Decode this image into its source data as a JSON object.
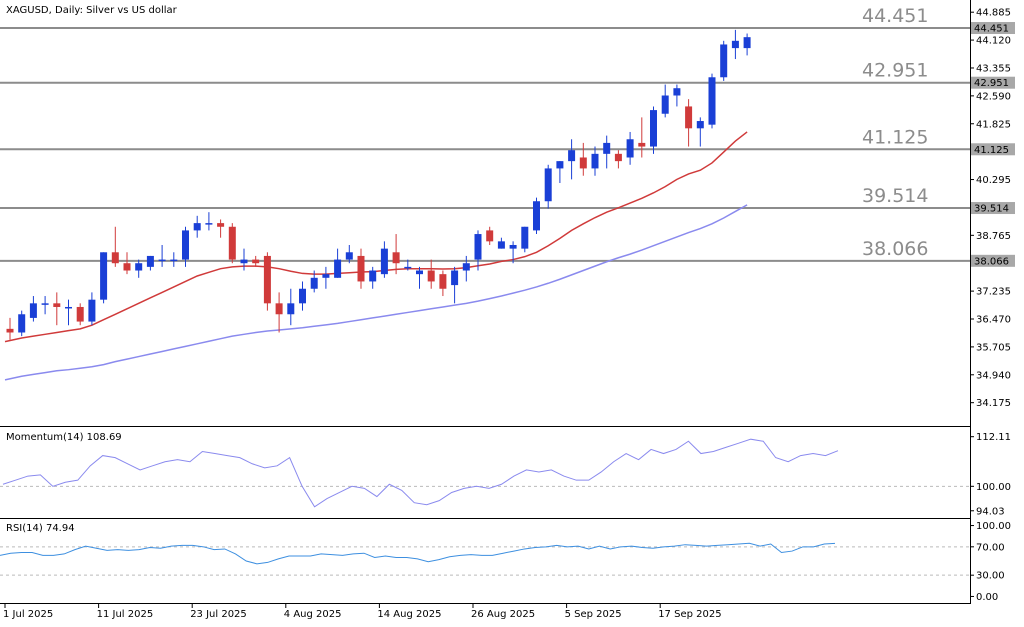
{
  "chart_data": [
    {
      "type": "candlestick",
      "title": "XAGUSD, Daily:  Silver vs US dollar",
      "ylim": [
        33.7,
        45.0
      ],
      "y_ticks": [
        "44.885",
        "44.120",
        "43.355",
        "42.590",
        "41.825",
        "41.060",
        "40.295",
        "39.530",
        "38.765",
        "38.000",
        "37.235",
        "36.470",
        "35.705",
        "34.940",
        "34.175"
      ],
      "x_tick_labels": [
        {
          "label": "1 Jul 2025",
          "index": 0
        },
        {
          "label": "11 Jul 2025",
          "index": 8
        },
        {
          "label": "23 Jul 2025",
          "index": 16
        },
        {
          "label": "4 Aug 2025",
          "index": 24
        },
        {
          "label": "14 Aug 2025",
          "index": 32
        },
        {
          "label": "26 Aug 2025",
          "index": 40
        },
        {
          "label": "5 Sep 2025",
          "index": 48
        },
        {
          "label": "17 Sep 2025",
          "index": 56
        }
      ],
      "levels": [
        {
          "value": 44.451,
          "label": "44.451",
          "tag": "44.451"
        },
        {
          "value": 42.951,
          "label": "42.951",
          "tag": "42.951"
        },
        {
          "value": 41.125,
          "label": "41.125",
          "tag": "41.125"
        },
        {
          "value": 39.514,
          "label": "39.514",
          "tag": "39.514"
        },
        {
          "value": 38.066,
          "label": "38.066",
          "tag": "38.066"
        }
      ],
      "colors": {
        "up": "#1a3fd6",
        "down": "#d03a3a",
        "ma_fast": "#d03a3a",
        "ma_slow": "#8a8aee",
        "level": "#8c8c8c"
      },
      "candles": [
        {
          "o": 36.2,
          "h": 36.5,
          "l": 35.9,
          "c": 36.1
        },
        {
          "o": 36.1,
          "h": 36.7,
          "l": 36.0,
          "c": 36.6
        },
        {
          "o": 36.5,
          "h": 37.1,
          "l": 36.4,
          "c": 36.9
        },
        {
          "o": 36.9,
          "h": 37.1,
          "l": 36.6,
          "c": 36.9
        },
        {
          "o": 36.9,
          "h": 37.2,
          "l": 36.3,
          "c": 36.8
        },
        {
          "o": 36.8,
          "h": 37.0,
          "l": 36.3,
          "c": 36.8
        },
        {
          "o": 36.8,
          "h": 36.9,
          "l": 36.3,
          "c": 36.4
        },
        {
          "o": 36.4,
          "h": 37.2,
          "l": 36.3,
          "c": 37.0
        },
        {
          "o": 37.0,
          "h": 38.3,
          "l": 36.9,
          "c": 38.3
        },
        {
          "o": 38.3,
          "h": 39.0,
          "l": 37.9,
          "c": 38.0
        },
        {
          "o": 38.0,
          "h": 38.3,
          "l": 37.7,
          "c": 37.8
        },
        {
          "o": 37.8,
          "h": 38.1,
          "l": 37.6,
          "c": 38.0
        },
        {
          "o": 37.9,
          "h": 38.2,
          "l": 37.8,
          "c": 38.2
        },
        {
          "o": 38.1,
          "h": 38.5,
          "l": 37.9,
          "c": 38.1
        },
        {
          "o": 38.1,
          "h": 38.3,
          "l": 37.9,
          "c": 38.1
        },
        {
          "o": 38.1,
          "h": 39.0,
          "l": 37.9,
          "c": 38.9
        },
        {
          "o": 38.9,
          "h": 39.3,
          "l": 38.7,
          "c": 39.1
        },
        {
          "o": 39.1,
          "h": 39.4,
          "l": 38.9,
          "c": 39.1
        },
        {
          "o": 39.1,
          "h": 39.2,
          "l": 38.7,
          "c": 39.0
        },
        {
          "o": 39.0,
          "h": 39.1,
          "l": 38.0,
          "c": 38.1
        },
        {
          "o": 38.0,
          "h": 38.4,
          "l": 37.8,
          "c": 38.1
        },
        {
          "o": 38.1,
          "h": 38.2,
          "l": 37.9,
          "c": 38.0
        },
        {
          "o": 38.2,
          "h": 38.3,
          "l": 36.7,
          "c": 36.9
        },
        {
          "o": 36.9,
          "h": 37.2,
          "l": 36.1,
          "c": 36.6
        },
        {
          "o": 36.6,
          "h": 37.3,
          "l": 36.3,
          "c": 36.9
        },
        {
          "o": 36.9,
          "h": 37.5,
          "l": 36.7,
          "c": 37.3
        },
        {
          "o": 37.3,
          "h": 37.8,
          "l": 37.2,
          "c": 37.6
        },
        {
          "o": 37.6,
          "h": 37.9,
          "l": 37.3,
          "c": 37.7
        },
        {
          "o": 37.6,
          "h": 38.4,
          "l": 37.6,
          "c": 38.1
        },
        {
          "o": 38.1,
          "h": 38.5,
          "l": 38.0,
          "c": 38.3
        },
        {
          "o": 38.2,
          "h": 38.4,
          "l": 37.3,
          "c": 37.5
        },
        {
          "o": 37.5,
          "h": 37.9,
          "l": 37.3,
          "c": 37.8
        },
        {
          "o": 37.7,
          "h": 38.6,
          "l": 37.6,
          "c": 38.4
        },
        {
          "o": 38.3,
          "h": 38.8,
          "l": 37.7,
          "c": 38.0
        },
        {
          "o": 37.9,
          "h": 38.1,
          "l": 37.8,
          "c": 37.9
        },
        {
          "o": 37.7,
          "h": 37.9,
          "l": 37.3,
          "c": 37.8
        },
        {
          "o": 37.8,
          "h": 38.1,
          "l": 37.3,
          "c": 37.5
        },
        {
          "o": 37.7,
          "h": 37.8,
          "l": 37.1,
          "c": 37.3
        },
        {
          "o": 37.4,
          "h": 37.9,
          "l": 36.9,
          "c": 37.8
        },
        {
          "o": 37.8,
          "h": 38.2,
          "l": 37.5,
          "c": 38.0
        },
        {
          "o": 38.1,
          "h": 38.9,
          "l": 37.8,
          "c": 38.8
        },
        {
          "o": 38.9,
          "h": 39.0,
          "l": 38.5,
          "c": 38.6
        },
        {
          "o": 38.4,
          "h": 38.7,
          "l": 38.4,
          "c": 38.6
        },
        {
          "o": 38.4,
          "h": 38.6,
          "l": 38.0,
          "c": 38.5
        },
        {
          "o": 38.4,
          "h": 39.0,
          "l": 38.3,
          "c": 39.0
        },
        {
          "o": 38.9,
          "h": 39.8,
          "l": 38.8,
          "c": 39.7
        },
        {
          "o": 39.7,
          "h": 40.7,
          "l": 39.5,
          "c": 40.6
        },
        {
          "o": 40.6,
          "h": 40.8,
          "l": 40.2,
          "c": 40.8
        },
        {
          "o": 40.8,
          "h": 41.4,
          "l": 40.3,
          "c": 41.1
        },
        {
          "o": 40.9,
          "h": 41.3,
          "l": 40.4,
          "c": 40.6
        },
        {
          "o": 40.6,
          "h": 41.2,
          "l": 40.4,
          "c": 41.0
        },
        {
          "o": 41.0,
          "h": 41.5,
          "l": 40.6,
          "c": 41.3
        },
        {
          "o": 41.0,
          "h": 41.1,
          "l": 40.6,
          "c": 40.8
        },
        {
          "o": 40.9,
          "h": 41.6,
          "l": 40.7,
          "c": 41.4
        },
        {
          "o": 41.3,
          "h": 42.0,
          "l": 40.9,
          "c": 41.2
        },
        {
          "o": 41.2,
          "h": 42.3,
          "l": 41.0,
          "c": 42.2
        },
        {
          "o": 42.1,
          "h": 42.9,
          "l": 42.0,
          "c": 42.6
        },
        {
          "o": 42.6,
          "h": 42.9,
          "l": 42.3,
          "c": 42.8
        },
        {
          "o": 42.3,
          "h": 42.5,
          "l": 41.2,
          "c": 41.7
        },
        {
          "o": 41.7,
          "h": 42.0,
          "l": 41.2,
          "c": 41.9
        },
        {
          "o": 41.8,
          "h": 43.2,
          "l": 41.7,
          "c": 43.1
        },
        {
          "o": 43.1,
          "h": 44.1,
          "l": 43.0,
          "c": 44.0
        },
        {
          "o": 43.9,
          "h": 44.4,
          "l": 43.6,
          "c": 44.1
        },
        {
          "o": 43.9,
          "h": 44.3,
          "l": 43.7,
          "c": 44.2
        }
      ],
      "ma_fast": [
        35.9,
        35.95,
        36.0,
        36.05,
        36.1,
        36.15,
        36.2,
        36.3,
        36.45,
        36.6,
        36.75,
        36.9,
        37.05,
        37.2,
        37.35,
        37.5,
        37.65,
        37.75,
        37.85,
        37.9,
        37.92,
        37.92,
        37.9,
        37.85,
        37.78,
        37.72,
        37.7,
        37.7,
        37.72,
        37.74,
        37.76,
        37.77,
        37.8,
        37.83,
        37.85,
        37.85,
        37.85,
        37.84,
        37.85,
        37.88,
        37.93,
        37.98,
        38.05,
        38.1,
        38.18,
        38.3,
        38.48,
        38.68,
        38.9,
        39.08,
        39.25,
        39.4,
        39.52,
        39.65,
        39.78,
        39.93,
        40.1,
        40.3,
        40.45,
        40.55,
        40.75,
        41.05,
        41.35,
        41.6
      ],
      "ma_slow": [
        34.85,
        34.9,
        34.95,
        35.0,
        35.05,
        35.08,
        35.12,
        35.16,
        35.22,
        35.3,
        35.37,
        35.44,
        35.51,
        35.58,
        35.65,
        35.72,
        35.79,
        35.86,
        35.93,
        36.0,
        36.05,
        36.1,
        36.14,
        36.17,
        36.2,
        36.23,
        36.27,
        36.31,
        36.35,
        36.4,
        36.45,
        36.5,
        36.55,
        36.6,
        36.65,
        36.7,
        36.75,
        36.8,
        36.85,
        36.9,
        36.96,
        37.03,
        37.1,
        37.18,
        37.26,
        37.35,
        37.45,
        37.56,
        37.68,
        37.8,
        37.92,
        38.04,
        38.15,
        38.25,
        38.36,
        38.48,
        38.6,
        38.72,
        38.84,
        38.95,
        39.08,
        39.24,
        39.42,
        39.6
      ]
    },
    {
      "type": "line",
      "title": "Momentum(14) 108.69",
      "ylim": [
        93.0,
        113.5
      ],
      "y_ticks": [
        "112.11",
        "100.00",
        "94.03"
      ],
      "reference": 100.0,
      "color": "#8a8aee",
      "values": [
        100.5,
        101.5,
        102.5,
        102.8,
        100.0,
        101.0,
        101.5,
        105.0,
        107.5,
        107.0,
        105.5,
        104.0,
        105.0,
        106.0,
        106.5,
        106.0,
        108.5,
        108.0,
        107.5,
        107.0,
        105.5,
        104.5,
        105.0,
        107.0,
        100.0,
        95.0,
        97.0,
        98.5,
        100.0,
        99.5,
        97.5,
        100.5,
        99.0,
        96.0,
        95.5,
        96.5,
        98.5,
        99.5,
        100.0,
        99.5,
        100.5,
        102.5,
        104.0,
        103.5,
        104.0,
        102.5,
        101.5,
        101.5,
        103.5,
        106.0,
        108.0,
        106.5,
        109.0,
        108.0,
        109.0,
        111.0,
        108.0,
        108.5,
        109.5,
        110.5,
        111.5,
        111.0,
        107.0,
        106.0,
        107.5,
        108.0,
        107.5,
        108.69
      ]
    },
    {
      "type": "line",
      "title": "RSI(14) 74.94",
      "ylim": [
        -5,
        105
      ],
      "y_ticks": [
        "100.00",
        "70.00",
        "30.00",
        "0.00"
      ],
      "levels": [
        70,
        30
      ],
      "color": "#3d8fe0",
      "values": [
        58,
        61,
        62,
        62,
        58,
        58,
        60,
        66,
        71,
        68,
        65,
        66,
        65,
        66,
        69,
        68,
        71,
        72,
        72,
        70,
        66,
        67,
        60,
        50,
        46,
        48,
        53,
        57,
        57,
        57,
        60,
        59,
        58,
        60,
        61,
        55,
        57,
        55,
        55,
        53,
        49,
        52,
        56,
        58,
        59,
        58,
        58,
        61,
        64,
        67,
        69,
        70,
        72,
        70,
        71,
        67,
        71,
        67,
        70,
        71,
        69,
        68,
        70,
        71,
        73,
        72,
        71,
        72,
        73,
        74,
        75,
        71,
        74,
        62,
        64,
        70,
        70,
        74,
        74.94
      ]
    }
  ]
}
